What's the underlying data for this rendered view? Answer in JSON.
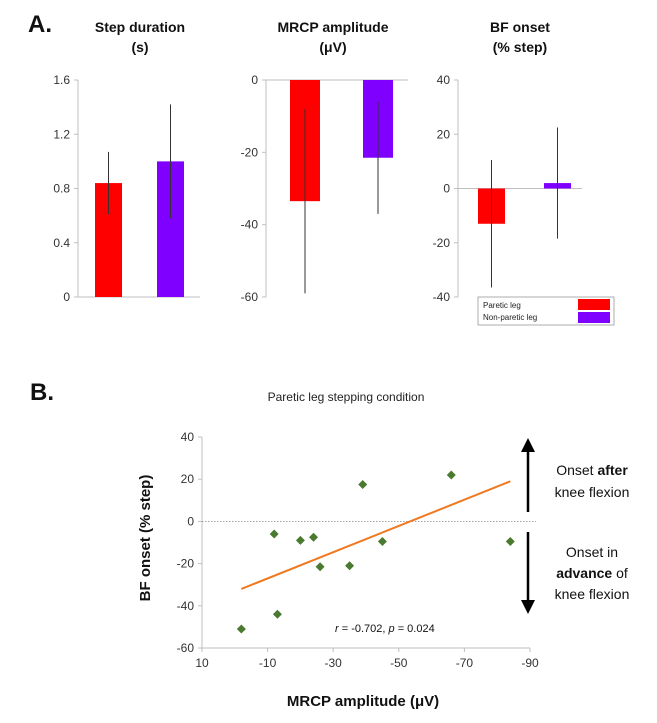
{
  "panel_a_letter": "A.",
  "panel_b_letter": "B.",
  "colors": {
    "paretic": "#ff0000",
    "nonparetic": "#8000ff",
    "scatter": "#4a7a30",
    "fit": "#f07820",
    "axis": "#bfbfbf",
    "error": "#333333"
  },
  "legend": {
    "paretic": "Paretic leg",
    "nonparetic": "Non-paretic leg"
  },
  "chart_data": [
    {
      "type": "bar",
      "title_line1": "Step duration",
      "title_line2": "(s)",
      "categories": [
        "Paretic leg",
        "Non-paretic leg"
      ],
      "values": [
        0.84,
        1.0
      ],
      "errors": [
        0.23,
        0.42
      ],
      "ylim": [
        0,
        1.6
      ],
      "yticks": [
        0,
        0.4,
        0.8,
        1.2,
        1.6
      ],
      "ytick_labels": [
        "0",
        "0.4",
        "0.8",
        "1.2",
        "1.6"
      ]
    },
    {
      "type": "bar",
      "title_line1": "MRCP amplitude",
      "title_line2": "(μV)",
      "categories": [
        "Paretic leg",
        "Non-paretic leg"
      ],
      "values": [
        -33.5,
        -21.5
      ],
      "errors": [
        25.5,
        15.5
      ],
      "ylim": [
        -60,
        0
      ],
      "yticks": [
        -60,
        -40,
        -20,
        0
      ],
      "ytick_labels": [
        "-60",
        "-40",
        "-20",
        "0"
      ]
    },
    {
      "type": "bar",
      "title_line1": "BF onset",
      "title_line2": "(% step)",
      "categories": [
        "Paretic leg",
        "Non-paretic leg"
      ],
      "values": [
        -13,
        2
      ],
      "errors": [
        23.5,
        20.5
      ],
      "ylim": [
        -40,
        40
      ],
      "yticks": [
        -40,
        -20,
        0,
        20,
        40
      ],
      "ytick_labels": [
        "-40",
        "-20",
        "0",
        "20",
        "40"
      ]
    },
    {
      "type": "scatter",
      "title": "Paretic leg stepping condition",
      "xlabel": "MRCP amplitude (μV)",
      "ylabel": "BF onset (% step)",
      "xlim": [
        10,
        -90
      ],
      "ylim": [
        -60,
        40
      ],
      "xticks": [
        10,
        -10,
        -30,
        -50,
        -70,
        -90
      ],
      "xtick_labels": [
        "10",
        "-10",
        "-30",
        "-50",
        "-70",
        "-90"
      ],
      "yticks": [
        -60,
        -40,
        -20,
        0,
        20,
        40
      ],
      "ytick_labels": [
        "-60",
        "-40",
        "-20",
        "0",
        "20",
        "40"
      ],
      "x": [
        -2,
        -12,
        -13,
        -20,
        -24,
        -26,
        -35,
        -39,
        -45,
        -66,
        -84
      ],
      "y": [
        -51,
        -6,
        -44,
        -9,
        -7.5,
        -21.5,
        -21,
        17.5,
        -9.5,
        22,
        -9.5
      ],
      "fit": {
        "x0": -2,
        "y0": -32,
        "x1": -84,
        "y1": 19
      },
      "stat": {
        "r_label": "r",
        "r_value": " = -0.702, ",
        "p_label": "p",
        "p_value": " = 0.024"
      }
    }
  ],
  "annotations": {
    "after_line1_pre": "Onset ",
    "after_line1_bold": "after",
    "after_line2": "knee flexion",
    "advance_line1": "Onset in",
    "advance_line2_bold": "advance",
    "advance_line2_post": " of",
    "advance_line3": "knee flexion"
  }
}
